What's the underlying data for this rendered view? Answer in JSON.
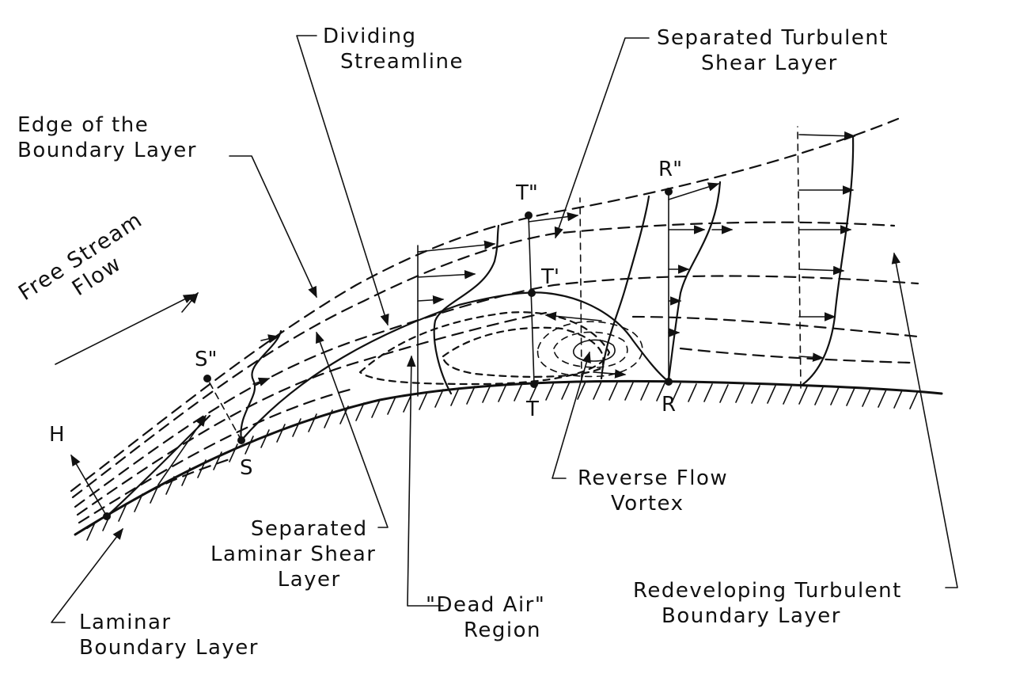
{
  "labels": {
    "dividing_streamline": [
      "Dividing",
      "Streamline"
    ],
    "separated_turbulent_shear_layer": [
      "Separated Turbulent",
      "Shear Layer"
    ],
    "edge_of_boundary_layer": [
      "Edge of the",
      "Boundary Layer"
    ],
    "free_stream_flow": [
      "Free Stream",
      "Flow"
    ],
    "reverse_flow_vortex": [
      "Reverse Flow",
      "Vortex"
    ],
    "separated_laminar_shear_layer": [
      "Separated",
      "Laminar Shear",
      "Layer"
    ],
    "dead_air_region": [
      "\"Dead Air\"",
      "Region"
    ],
    "redeveloping_turbulent_boundary_layer": [
      "Redeveloping Turbulent",
      "Boundary Layer"
    ],
    "laminar_boundary_layer": [
      "Laminar",
      "Boundary Layer"
    ]
  },
  "points": {
    "H": "H",
    "S": "S",
    "S2": "S\"",
    "T": "T",
    "T1": "T'",
    "T2": "T\"",
    "R": "R",
    "R2": "R\""
  },
  "colors": {
    "ink": "#111111",
    "background": "#ffffff"
  }
}
